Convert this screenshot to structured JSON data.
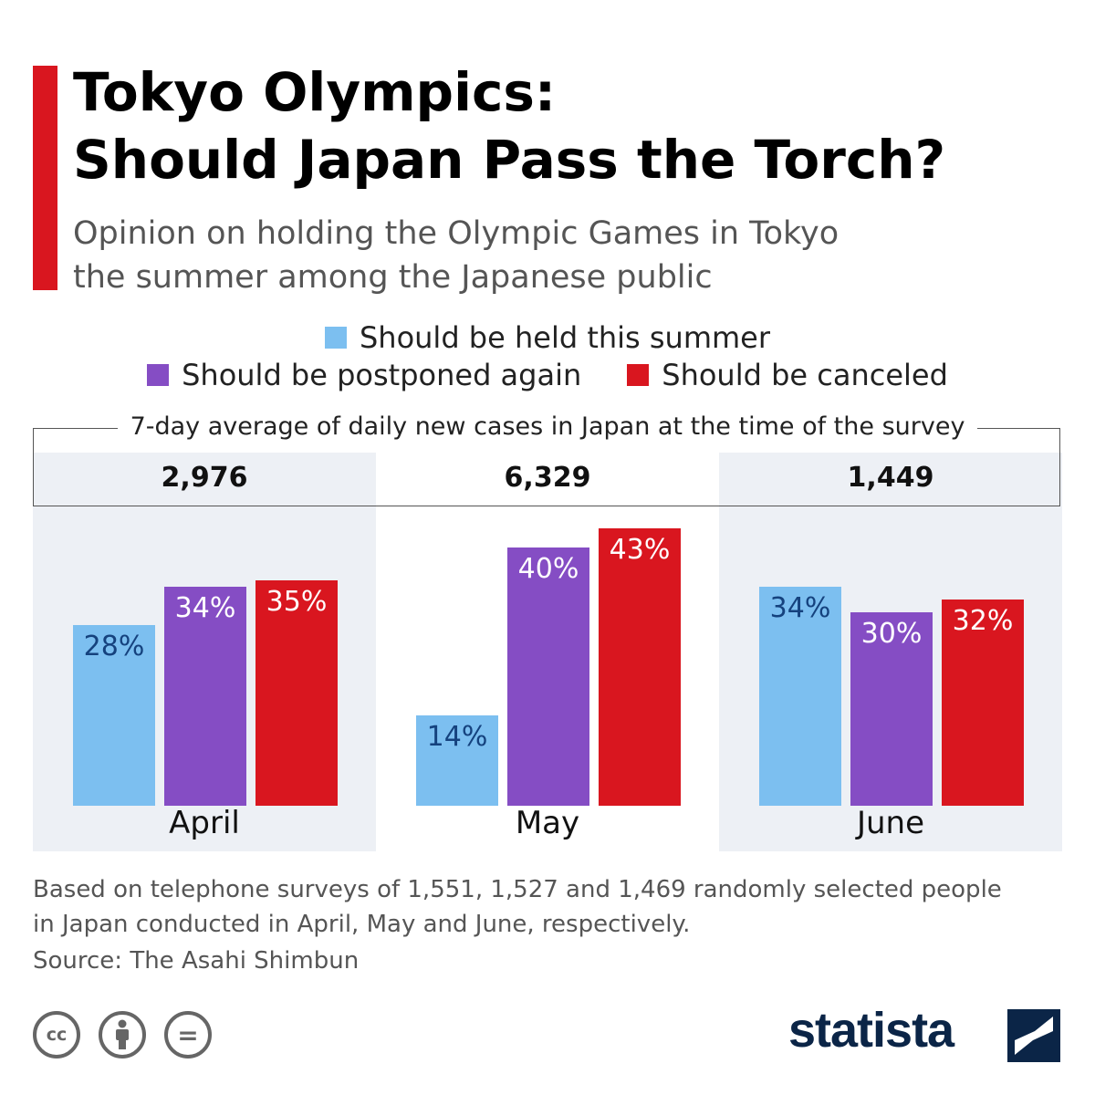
{
  "title_line1": "Tokyo Olympics:",
  "title_line2": "Should Japan Pass the Torch?",
  "subtitle_line1": "Opinion on holding the Olympic Games in Tokyo",
  "subtitle_line2": "the summer among the Japanese public",
  "legend": [
    {
      "label": "Should be held this summer",
      "color": "#7cbff0"
    },
    {
      "label": "Should be postponed again",
      "color": "#854dc4"
    },
    {
      "label": "Should be canceled",
      "color": "#d9161f"
    }
  ],
  "cases_header": "7-day average of daily new cases in Japan at the time of the survey",
  "cases": [
    "2,976",
    "6,329",
    "1,449"
  ],
  "chart_data": {
    "type": "bar",
    "title": "Tokyo Olympics: Should Japan Pass the Torch?",
    "categories": [
      "April",
      "May",
      "June"
    ],
    "series": [
      {
        "name": "Should be held this summer",
        "values": [
          28,
          14,
          34
        ],
        "labels": [
          "28%",
          "14%",
          "34%"
        ],
        "color": "#7cbff0",
        "label_color": "#15427e"
      },
      {
        "name": "Should be postponed again",
        "values": [
          34,
          40,
          30
        ],
        "labels": [
          "34%",
          "40%",
          "30%"
        ],
        "color": "#854dc4",
        "label_color": "#ffffff"
      },
      {
        "name": "Should be canceled",
        "values": [
          35,
          43,
          32
        ],
        "labels": [
          "35%",
          "43%",
          "32%"
        ],
        "color": "#d9161f",
        "label_color": "#ffffff"
      }
    ],
    "ylim": [
      0,
      45
    ],
    "grid": false,
    "legend": "top-center"
  },
  "footnote_line1": "Based on telephone surveys of 1,551, 1,527 and 1,469 randomly selected people",
  "footnote_line2": "in Japan conducted in April, May and June, respectively.",
  "source": "Source: The Asahi Shimbun",
  "license_icons": [
    {
      "name": "cc-icon",
      "text": "cc"
    },
    {
      "name": "attribution-icon",
      "text": ""
    },
    {
      "name": "no-derivatives-icon",
      "text": "="
    }
  ],
  "brand": "statista"
}
